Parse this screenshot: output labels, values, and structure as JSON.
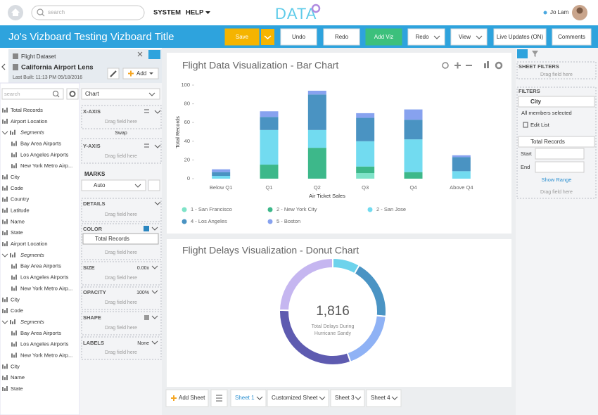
{
  "header": {
    "search": "search",
    "menu": [
      "SYSTEM",
      "HELP"
    ],
    "logo": "DATA",
    "user": "Jo Lam"
  },
  "toolbar": {
    "title": "Jo's Vizboard Testing Vizboard Title",
    "buttons": [
      "Save",
      "Undo",
      "Redo",
      "Add Viz",
      "Redo",
      "View",
      "Live Updates (ON)",
      "Comments"
    ]
  },
  "dataset": {
    "name": "Flight Dataset",
    "lens": "California Airport Lens",
    "last_built": "Last Built: 11:13 PM 05/18/2016",
    "add": "Add"
  },
  "fields": {
    "search": "search",
    "items": [
      {
        "label": "Total Records"
      },
      {
        "label": "Airport Location"
      },
      {
        "label": "Segments",
        "items": [
          "Bay Area Airports",
          "Los Angeles Airports",
          "New York Metro Airp..."
        ]
      },
      {
        "label": "City"
      },
      {
        "label": "Code"
      },
      {
        "label": "Country"
      },
      {
        "label": "Latitude"
      },
      {
        "label": "Name"
      },
      {
        "label": "State"
      },
      {
        "label": "Airport Location"
      },
      {
        "label": "Segments",
        "items": [
          "Bay Area Airports",
          "Los Angeles Airports",
          "New York Metro Airp..."
        ]
      },
      {
        "label": "City"
      },
      {
        "label": "Code"
      },
      {
        "label": "Segments",
        "items": [
          "Bay Area Airports",
          "Los Angeles Airports",
          "New York Metro Airp..."
        ]
      },
      {
        "label": "City"
      },
      {
        "label": "Name"
      },
      {
        "label": "State"
      }
    ]
  },
  "shelf": {
    "chart": "Chart",
    "x_axis": "X-AXIS",
    "y_axis": "Y-AXIS",
    "swap": "Swap",
    "drop_hint": "Drag field here",
    "marks": "MARKS",
    "mark_type": "Auto",
    "details": "DETAILS",
    "color": "COLOR",
    "color_field": "Total Records",
    "size": "SIZE",
    "size_value": "0.00x",
    "opacity": "OPACITY",
    "opacity_value": "100%",
    "shape": "SHAPE",
    "labels": "LABELS",
    "labels_value": "None"
  },
  "filters": {
    "sheet_filters": "SHEET FILTERS",
    "drop_hint": "Drag field here",
    "filters": "FILTERS",
    "city": "City",
    "city_status": "All members selected",
    "edit_list": "Edit List",
    "records": "Total Records",
    "start": "Start",
    "end": "End",
    "show_range": "Show Range"
  },
  "sheets": {
    "add": "Add Sheet",
    "tabs": [
      "Sheet 1",
      "Customized Sheet",
      "Sheet 3",
      "Sheet 4"
    ]
  },
  "chart_data": [
    {
      "type": "bar",
      "stacked": true,
      "title": "Flight Data Visualization - Bar Chart",
      "x_label": "Air Ticket Sales",
      "y_label": "Total Records",
      "categories": [
        "Below Q1",
        "Q1",
        "Q2",
        "Q3",
        "Q4",
        "Above Q4"
      ],
      "series": [
        {
          "name": "1 - San Francisco",
          "color": "#7fe3c8",
          "values": [
            0,
            0,
            0,
            6,
            0,
            0
          ]
        },
        {
          "name": "2 - New York City",
          "color": "#3db88a",
          "values": [
            0,
            15,
            33,
            7,
            7,
            0
          ]
        },
        {
          "name": "2 - San Jose",
          "color": "#72dbf0",
          "values": [
            3,
            37,
            19,
            27,
            35,
            8
          ]
        },
        {
          "name": "4 - Los Angeles",
          "color": "#4a93c2",
          "values": [
            4,
            14,
            38,
            25,
            21,
            15
          ]
        },
        {
          "name": "5 - Boston",
          "color": "#87a2ef",
          "values": [
            3,
            6,
            4,
            5,
            11,
            2
          ]
        }
      ],
      "ylim": [
        0,
        100
      ],
      "yticks": [
        0,
        20,
        40,
        60,
        80,
        100
      ],
      "grid": false
    },
    {
      "type": "donut",
      "title": "Flight Delays Visualization - Donut Chart",
      "total": {
        "value": 1816,
        "label": "1,816"
      },
      "center_label": [
        "Total Delays During",
        "Hurricane Sandy"
      ],
      "values": [
        150,
        330,
        330,
        560,
        446
      ],
      "colors": [
        "#6dd3ec",
        "#4a94c4",
        "#8fb2f5",
        "#5e5bb0",
        "#c5b6f0"
      ]
    }
  ]
}
